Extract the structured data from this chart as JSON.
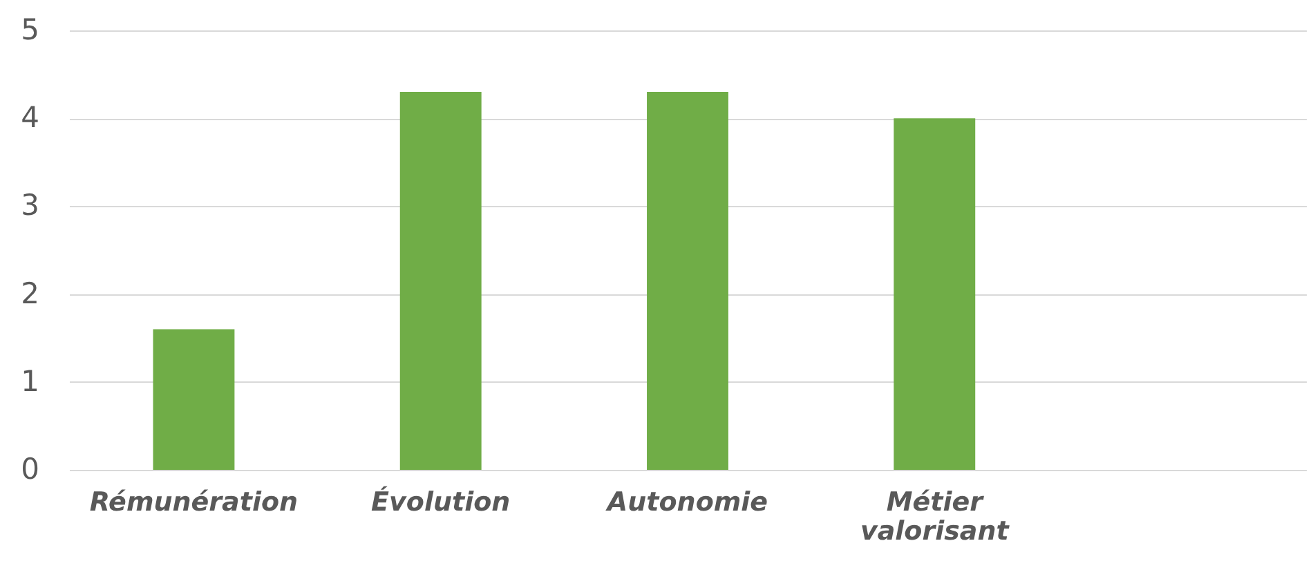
{
  "chart_data": {
    "type": "bar",
    "categories": [
      "Rémunération",
      "Évolution",
      "Autonomie",
      "Métier valorisant",
      null
    ],
    "series": [
      {
        "color": "#70ad47",
        "values": [
          1.6,
          4.3,
          4.3,
          4.0,
          null
        ]
      }
    ],
    "ylim": [
      0,
      5
    ],
    "yticks": [
      0,
      1,
      2,
      3,
      4,
      5
    ],
    "grid": "y"
  }
}
